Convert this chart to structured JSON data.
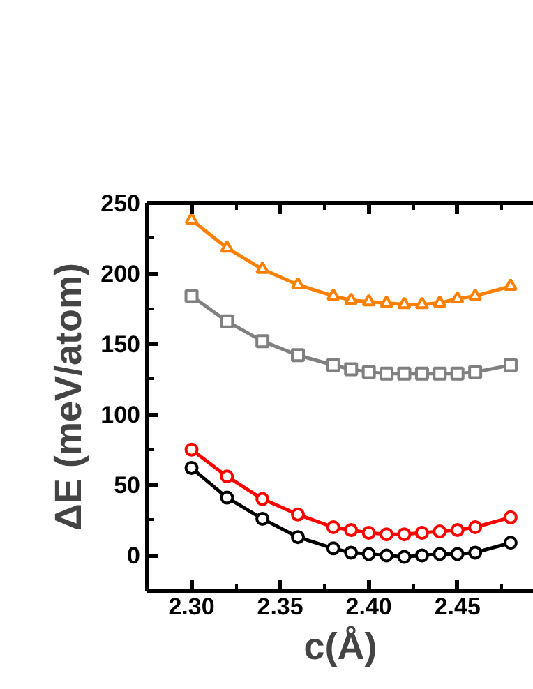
{
  "chart_data": {
    "type": "line",
    "xlabel": "c(Å)",
    "ylabel": "ΔE (meV/atom)",
    "x": [
      2.3,
      2.32,
      2.34,
      2.36,
      2.38,
      2.39,
      2.4,
      2.41,
      2.42,
      2.43,
      2.44,
      2.45,
      2.46,
      2.48
    ],
    "series": [
      {
        "color": "#ff8000",
        "marker": "triangle",
        "values": [
          238,
          218,
          203,
          192,
          184,
          181,
          180,
          179,
          178,
          178,
          179,
          182,
          184,
          191
        ]
      },
      {
        "color": "#808080",
        "marker": "square",
        "values": [
          184,
          166,
          152,
          142,
          135,
          132,
          130,
          129,
          129,
          129,
          129,
          129,
          130,
          135
        ]
      },
      {
        "color": "#ff0000",
        "marker": "circle",
        "values": [
          75,
          56,
          40,
          29,
          20,
          18,
          16,
          15,
          15,
          16,
          17,
          18,
          20,
          27
        ]
      },
      {
        "color": "#000000",
        "marker": "circle",
        "values": [
          62,
          41,
          26,
          13,
          5,
          2,
          1,
          0,
          -1,
          0,
          1,
          1,
          2,
          9
        ]
      }
    ],
    "xlim": [
      2.275,
      2.493
    ],
    "ylim": [
      -25,
      250
    ],
    "xticks": [
      {
        "value": 2.3,
        "label": "2.30"
      },
      2.35,
      {
        "value": 2.4,
        "label": "2.40"
      },
      2.45
    ],
    "yticks": [
      0,
      50,
      100,
      150,
      200,
      250
    ],
    "line_style": "solid",
    "grid": false
  }
}
